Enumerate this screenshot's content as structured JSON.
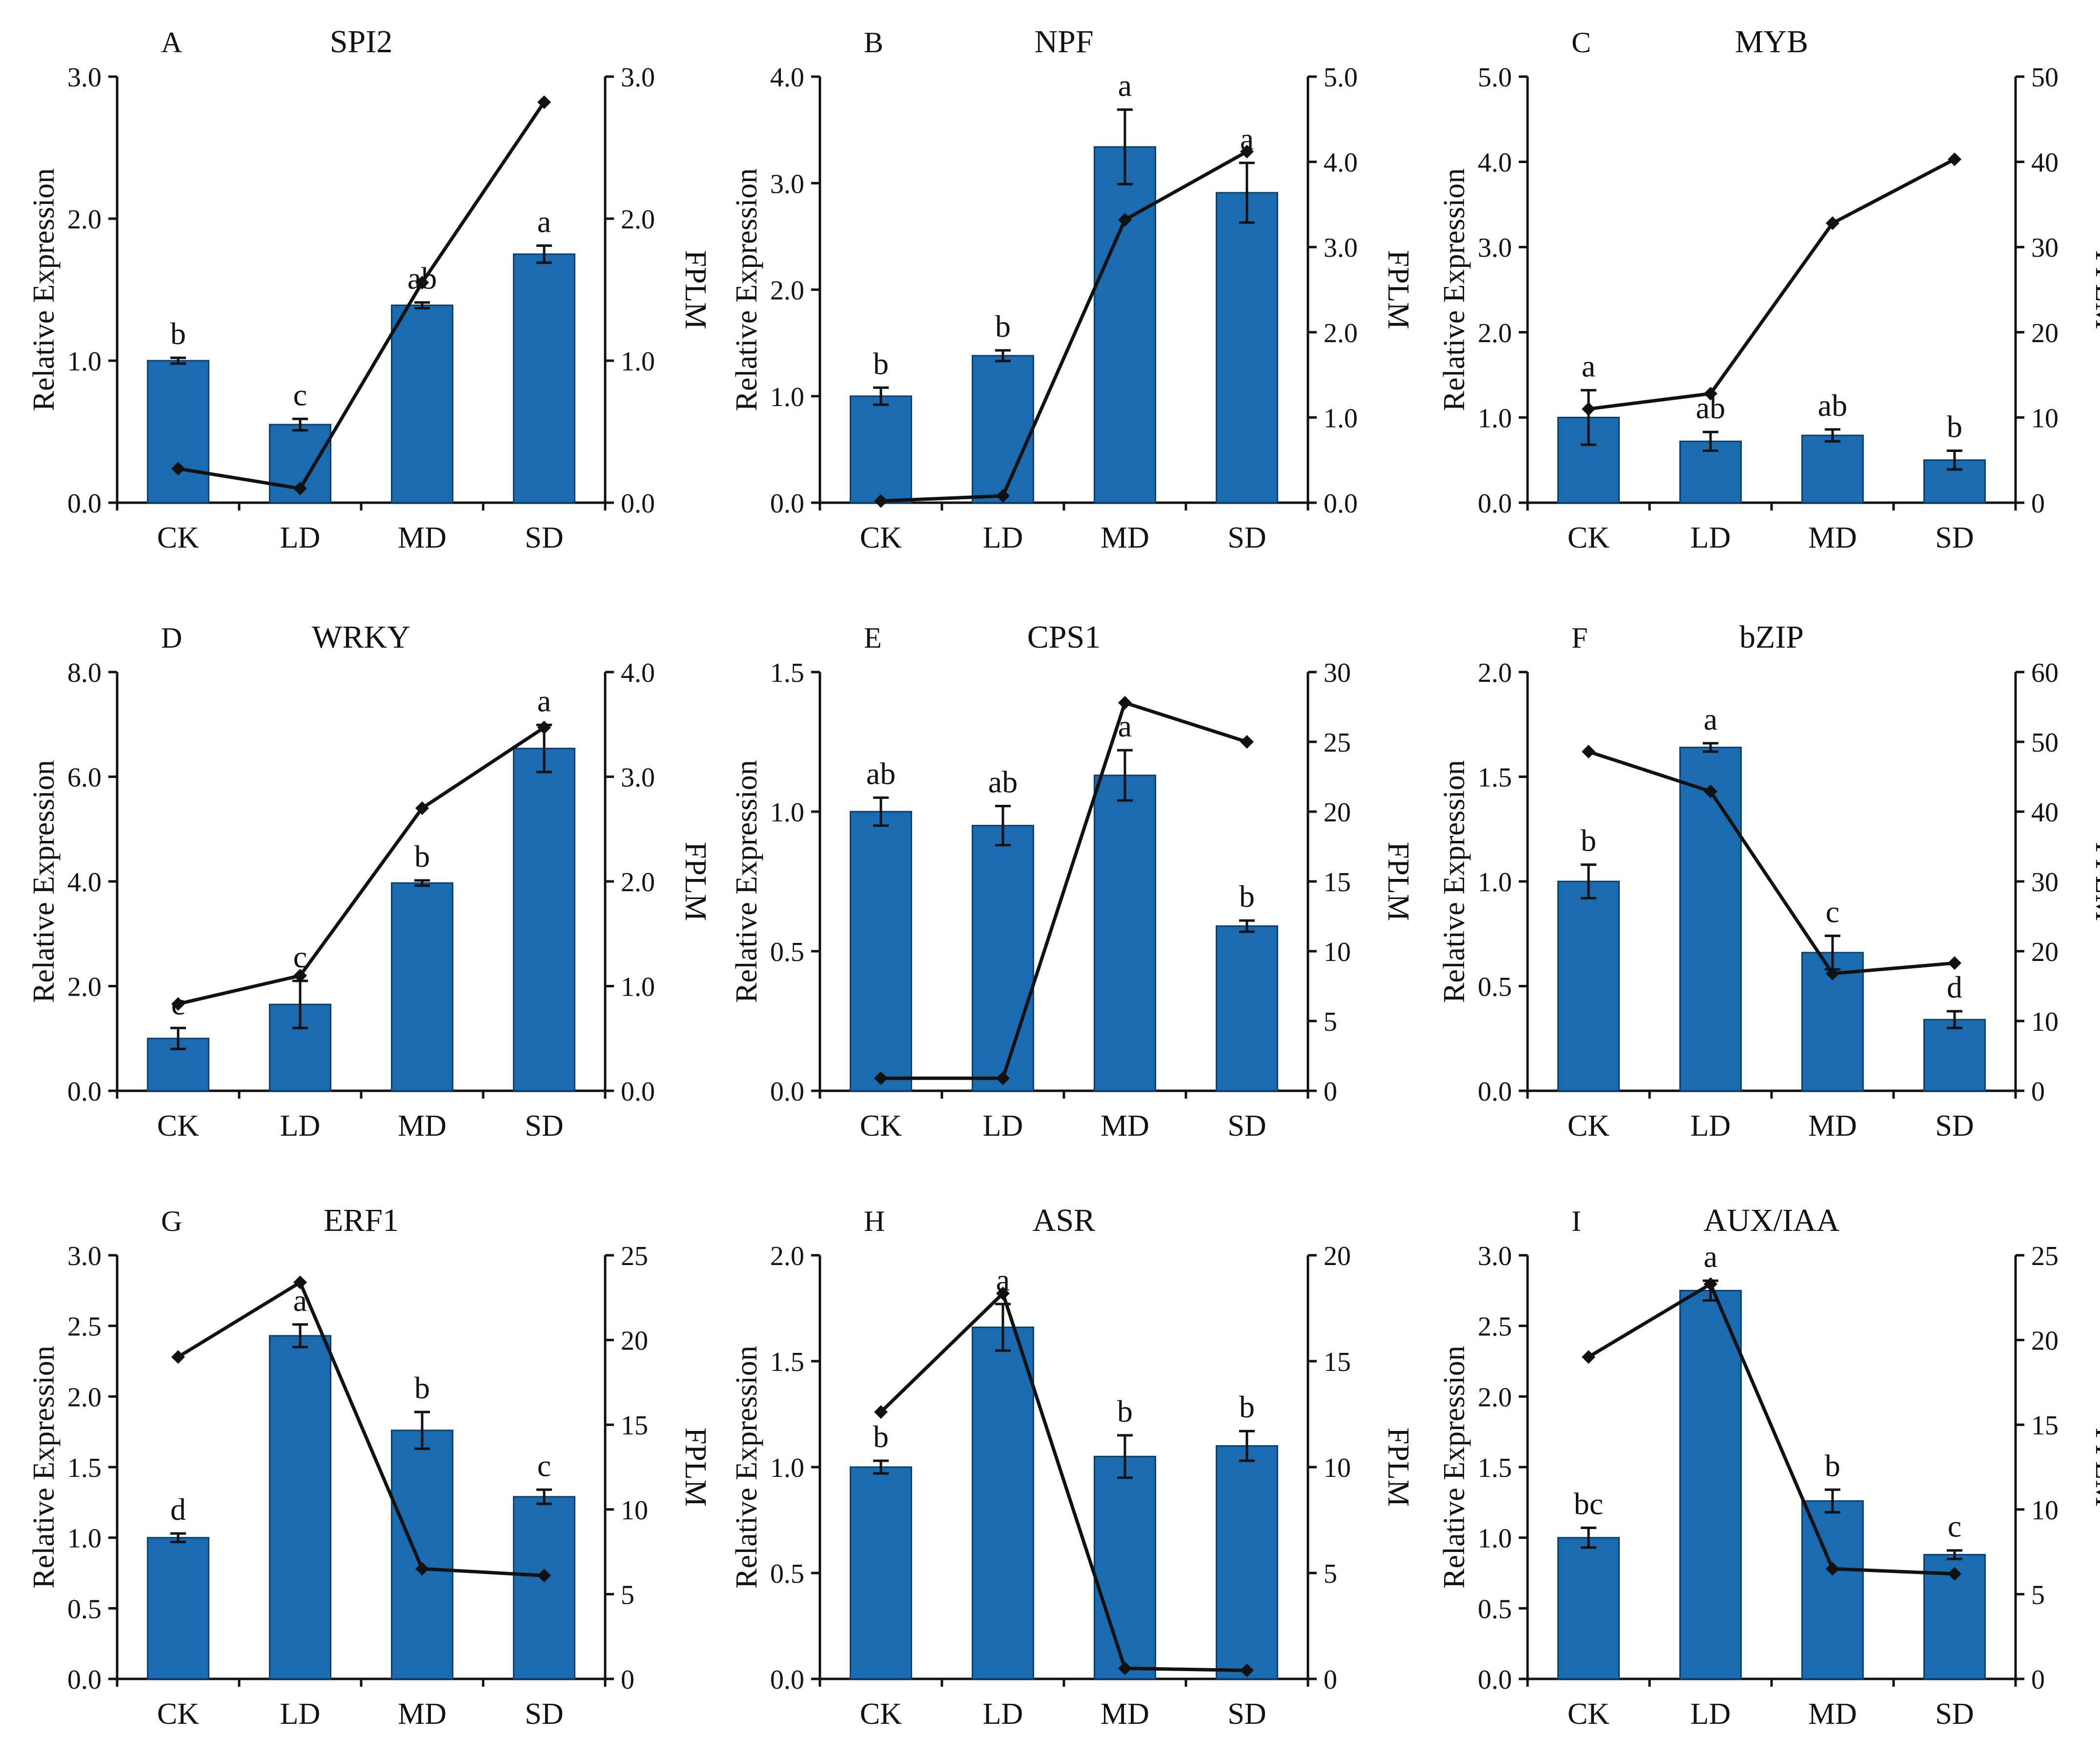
{
  "figure": {
    "left_axis_title": "Relative Expression",
    "right_axis_title": "FPLM",
    "bar_color": "#1a6bb0",
    "bar_edge_color": "#0d3f6e",
    "line_color": "#111111"
  },
  "chart_data": [
    {
      "type": "bar+line",
      "panel": "A",
      "title": "SPI2",
      "categories": [
        "CK",
        "LD",
        "MD",
        "SD"
      ],
      "ylabel": "Relative Expression",
      "y2label": "FPLM",
      "ylim": [
        0,
        3.0
      ],
      "yticks": [
        "0.0",
        "1.0",
        "2.0",
        "3.0"
      ],
      "y2lim": [
        0,
        3.0
      ],
      "y2ticks": [
        "0.0",
        "1.0",
        "2.0",
        "3.0"
      ],
      "bars": [
        1.0,
        0.55,
        1.39,
        1.75
      ],
      "errors": [
        0.02,
        0.04,
        0.02,
        0.06
      ],
      "letters": [
        "b",
        "c",
        "ab",
        "a"
      ],
      "line": [
        0.24,
        0.1,
        1.55,
        2.82
      ]
    },
    {
      "type": "bar+line",
      "panel": "B",
      "title": "NPF",
      "categories": [
        "CK",
        "LD",
        "MD",
        "SD"
      ],
      "ylabel": "Relative Expression",
      "y2label": "FPLM",
      "ylim": [
        0,
        4.0
      ],
      "yticks": [
        "0.0",
        "1.0",
        "2.0",
        "3.0",
        "4.0"
      ],
      "y2lim": [
        0,
        5.0
      ],
      "y2ticks": [
        "0.0",
        "1.0",
        "2.0",
        "3.0",
        "4.0",
        "5.0"
      ],
      "bars": [
        1.0,
        1.38,
        3.34,
        2.91
      ],
      "errors": [
        0.08,
        0.05,
        0.35,
        0.28
      ],
      "letters": [
        "b",
        "b",
        "a",
        "a"
      ],
      "line": [
        0.02,
        0.08,
        3.32,
        4.12
      ]
    },
    {
      "type": "bar+line",
      "panel": "C",
      "title": "MYB",
      "categories": [
        "CK",
        "LD",
        "MD",
        "SD"
      ],
      "ylabel": "Relative Expression",
      "y2label": "FPLM",
      "ylim": [
        0,
        5.0
      ],
      "yticks": [
        "0.0",
        "1.0",
        "2.0",
        "3.0",
        "4.0",
        "5.0"
      ],
      "y2lim": [
        0,
        50
      ],
      "y2ticks": [
        "0",
        "10",
        "20",
        "30",
        "40",
        "50"
      ],
      "bars": [
        1.0,
        0.72,
        0.79,
        0.5
      ],
      "errors": [
        0.32,
        0.11,
        0.07,
        0.11
      ],
      "letters": [
        "a",
        "ab",
        "ab",
        "b"
      ],
      "line": [
        11.0,
        12.8,
        32.8,
        40.3
      ]
    },
    {
      "type": "bar+line",
      "panel": "D",
      "title": "WRKY",
      "categories": [
        "CK",
        "LD",
        "MD",
        "SD"
      ],
      "ylabel": "Relative Expression",
      "y2label": "FPLM",
      "ylim": [
        0,
        8.0
      ],
      "yticks": [
        "0.0",
        "2.0",
        "4.0",
        "6.0",
        "8.0"
      ],
      "y2lim": [
        0,
        4.0
      ],
      "y2ticks": [
        "0.0",
        "1.0",
        "2.0",
        "3.0",
        "4.0"
      ],
      "bars": [
        1.0,
        1.65,
        3.97,
        6.54
      ],
      "errors": [
        0.2,
        0.45,
        0.05,
        0.45
      ],
      "letters": [
        "c",
        "c",
        "b",
        "a"
      ],
      "line": [
        0.83,
        1.1,
        2.7,
        3.47
      ]
    },
    {
      "type": "bar+line",
      "panel": "E",
      "title": "CPS1",
      "categories": [
        "CK",
        "LD",
        "MD",
        "SD"
      ],
      "ylabel": "Relative Expression",
      "y2label": "FPLM",
      "ylim": [
        0,
        1.5
      ],
      "yticks": [
        "0.0",
        "0.5",
        "1.0",
        "1.5"
      ],
      "y2lim": [
        0,
        30
      ],
      "y2ticks": [
        "0",
        "5",
        "10",
        "15",
        "20",
        "25",
        "30"
      ],
      "bars": [
        1.0,
        0.95,
        1.13,
        0.59
      ],
      "errors": [
        0.05,
        0.07,
        0.09,
        0.02
      ],
      "letters": [
        "ab",
        "ab",
        "a",
        "b"
      ],
      "line": [
        0.9,
        0.9,
        27.8,
        25.0
      ]
    },
    {
      "type": "bar+line",
      "panel": "F",
      "title": "bZIP",
      "categories": [
        "CK",
        "LD",
        "MD",
        "SD"
      ],
      "ylabel": "Relative Expression",
      "y2label": "FPLM",
      "ylim": [
        0,
        2.0
      ],
      "yticks": [
        "0.0",
        "0.5",
        "1.0",
        "1.5",
        "2.0"
      ],
      "y2lim": [
        0,
        60
      ],
      "y2ticks": [
        "0",
        "10",
        "20",
        "30",
        "40",
        "50",
        "60"
      ],
      "bars": [
        1.0,
        1.64,
        0.66,
        0.34
      ],
      "errors": [
        0.08,
        0.02,
        0.08,
        0.04
      ],
      "letters": [
        "b",
        "a",
        "c",
        "d"
      ],
      "line": [
        48.6,
        42.9,
        16.8,
        18.3
      ]
    },
    {
      "type": "bar+line",
      "panel": "G",
      "title": "ERF1",
      "categories": [
        "CK",
        "LD",
        "MD",
        "SD"
      ],
      "ylabel": "Relative Expression",
      "y2label": "FPLM",
      "ylim": [
        0,
        3.0
      ],
      "yticks": [
        "0.0",
        "0.5",
        "1.0",
        "1.5",
        "2.0",
        "2.5",
        "3.0"
      ],
      "y2lim": [
        0,
        25
      ],
      "y2ticks": [
        "0",
        "5",
        "10",
        "15",
        "20",
        "25"
      ],
      "bars": [
        1.0,
        2.43,
        1.76,
        1.29
      ],
      "errors": [
        0.03,
        0.08,
        0.13,
        0.05
      ],
      "letters": [
        "d",
        "a",
        "b",
        "c"
      ],
      "line": [
        19.0,
        23.4,
        6.5,
        6.1
      ]
    },
    {
      "type": "bar+line",
      "panel": "H",
      "title": "ASR",
      "categories": [
        "CK",
        "LD",
        "MD",
        "SD"
      ],
      "ylabel": "Relative Expression",
      "y2label": "FPLM",
      "ylim": [
        0,
        2.0
      ],
      "yticks": [
        "0.0",
        "0.5",
        "1.0",
        "1.5",
        "2.0"
      ],
      "y2lim": [
        0,
        20
      ],
      "y2ticks": [
        "0",
        "5",
        "10",
        "15",
        "20"
      ],
      "bars": [
        1.0,
        1.66,
        1.05,
        1.1
      ],
      "errors": [
        0.03,
        0.11,
        0.1,
        0.07
      ],
      "letters": [
        "b",
        "a",
        "b",
        "b"
      ],
      "line": [
        12.6,
        18.2,
        0.5,
        0.4
      ]
    },
    {
      "type": "bar+line",
      "panel": "I",
      "title": "AUX/IAA",
      "categories": [
        "CK",
        "LD",
        "MD",
        "SD"
      ],
      "ylabel": "Relative Expression",
      "y2label": "FPLM",
      "ylim": [
        0,
        3.0
      ],
      "yticks": [
        "0.0",
        "0.5",
        "1.0",
        "1.5",
        "2.0",
        "2.5",
        "3.0"
      ],
      "y2lim": [
        0,
        25
      ],
      "y2ticks": [
        "0",
        "5",
        "10",
        "15",
        "20",
        "25"
      ],
      "bars": [
        1.0,
        2.75,
        1.26,
        0.88
      ],
      "errors": [
        0.07,
        0.07,
        0.08,
        0.03
      ],
      "letters": [
        "bc",
        "a",
        "b",
        "c"
      ],
      "line": [
        19.0,
        23.3,
        6.5,
        6.2
      ]
    }
  ]
}
